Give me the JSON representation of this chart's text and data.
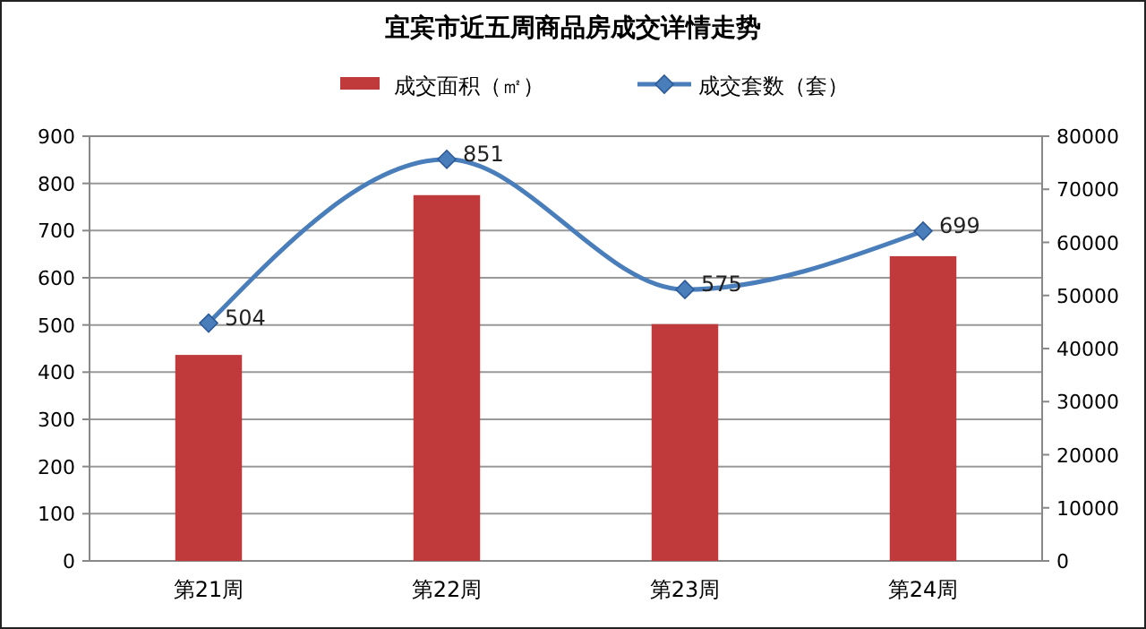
{
  "chart_data": {
    "type": "bar",
    "title": "宜宾市近五周商品房成交详情走势",
    "categories": [
      "第21周",
      "第22周",
      "第23周",
      "第24周"
    ],
    "series": [
      {
        "name": "成交面积（㎡）",
        "axis": "y2",
        "color": "#c0393b",
        "values": [
          38800,
          68900,
          44600,
          57400
        ]
      },
      {
        "name": "成交套数（套）",
        "type": "line",
        "axis": "y",
        "color": "#4a7ebb",
        "values": [
          504,
          851,
          575,
          699
        ],
        "marker": "diamond",
        "data_labels": true
      }
    ],
    "ylim": [
      0,
      900
    ],
    "yticks": [
      0,
      100,
      200,
      300,
      400,
      500,
      600,
      700,
      800,
      900
    ],
    "y2lim": [
      0,
      80000
    ],
    "y2ticks": [
      0,
      10000,
      20000,
      30000,
      40000,
      50000,
      60000,
      70000,
      80000
    ],
    "grid": "y",
    "legend": "top"
  }
}
